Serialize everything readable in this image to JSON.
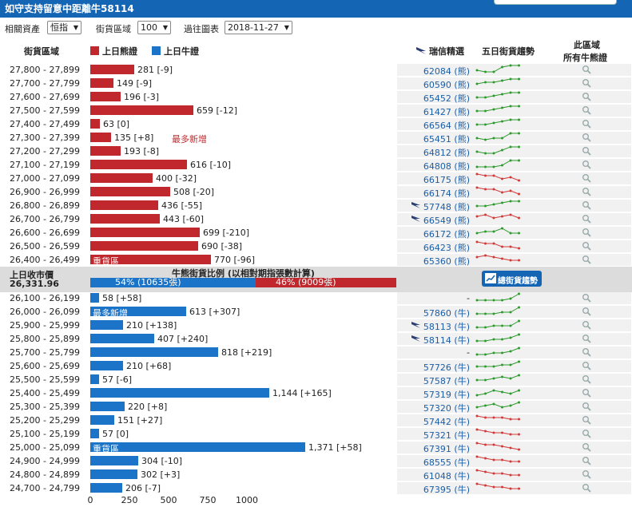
{
  "header": {
    "title": "如守支持留意中距離牛58114"
  },
  "controls": {
    "asset_label": "相關資產",
    "asset_value": "恒指",
    "zone_label": "街貨區域",
    "zone_value": "100",
    "date_label": "過往圖表",
    "date_value": "2018-11-27"
  },
  "columns": {
    "zone": "街貨區域",
    "bear_legend": "上日熊證",
    "bull_legend": "上日牛證",
    "pick": "瑞信精選",
    "trend": "五日街貨趨勢",
    "all_line1": "此區域",
    "all_line2": "所有牛熊證"
  },
  "mid": {
    "close_label": "上日收市價",
    "close_value": "26,331.96",
    "ratio_title": "牛熊街貨比例 (以相對期指張數計算)",
    "bull_label": "54% (10635張)",
    "bear_label": "46% (9009張)",
    "trend_button": "總街貨趨勢"
  },
  "colors": {
    "bear": "#c0282d",
    "bull": "#1b74c7",
    "header": "#1565b5"
  },
  "chart_data": {
    "type": "bar",
    "orientation": "horizontal",
    "xlim": [
      0,
      1400
    ],
    "xticks": [
      "0",
      "250",
      "500",
      "750",
      "1000"
    ],
    "bear_rows": [
      {
        "range": "27,800 - 27,899",
        "value": 281,
        "change": "[-9]",
        "code": "62084 (熊)",
        "flag": false,
        "trend": [
          3,
          2,
          2,
          5,
          6,
          6
        ]
      },
      {
        "range": "27,700 - 27,799",
        "value": 149,
        "change": "[-9]",
        "code": "60590 (熊)",
        "flag": false,
        "trend": [
          3,
          4,
          4,
          5,
          6,
          6
        ]
      },
      {
        "range": "27,600 - 27,699",
        "value": 196,
        "change": "[-3]",
        "code": "65452 (熊)",
        "flag": false,
        "trend": [
          3,
          3,
          4,
          5,
          6,
          6
        ]
      },
      {
        "range": "27,500 - 27,599",
        "value": 659,
        "change": "[-12]",
        "code": "61427 (熊)",
        "flag": false,
        "trend": [
          3,
          3,
          4,
          5,
          6,
          6
        ]
      },
      {
        "range": "27,400 - 27,499",
        "value": 63,
        "change": "[0]",
        "code": "66564 (熊)",
        "flag": false,
        "trend": [
          3,
          3,
          4,
          5,
          6,
          6
        ]
      },
      {
        "range": "27,300 - 27,399",
        "value": 135,
        "change": "[+8]",
        "note": "最多新增",
        "code": "65451 (熊)",
        "flag": false,
        "trend": [
          3,
          2,
          3,
          3,
          6,
          6
        ]
      },
      {
        "range": "27,200 - 27,299",
        "value": 193,
        "change": "[-8]",
        "code": "64812 (熊)",
        "flag": false,
        "trend": [
          3,
          2,
          2,
          4,
          6,
          6
        ]
      },
      {
        "range": "27,100 - 27,199",
        "value": 616,
        "change": "[-10]",
        "code": "64808 (熊)",
        "flag": false,
        "trend": [
          2,
          2,
          2,
          3,
          6,
          6
        ]
      },
      {
        "range": "27,000 - 27,099",
        "value": 400,
        "change": "[-32]",
        "code": "66175 (熊)",
        "flag": false,
        "trend": [
          6,
          5,
          5,
          3,
          4,
          2
        ]
      },
      {
        "range": "26,900 - 26,999",
        "value": 508,
        "change": "[-20]",
        "code": "66174 (熊)",
        "flag": false,
        "trend": [
          6,
          5,
          5,
          3,
          4,
          2
        ]
      },
      {
        "range": "26,800 - 26,899",
        "value": 436,
        "change": "[-55]",
        "code": "57748 (熊)",
        "flag": true,
        "trend": [
          3,
          3,
          4,
          5,
          6,
          6
        ]
      },
      {
        "range": "26,700 - 26,799",
        "value": 443,
        "change": "[-60]",
        "code": "66549 (熊)",
        "flag": true,
        "trend": [
          5,
          6,
          4,
          5,
          6,
          4
        ]
      },
      {
        "range": "26,600 - 26,699",
        "value": 699,
        "change": "[-210]",
        "code": "66172 (熊)",
        "flag": false,
        "trend": [
          3,
          4,
          4,
          6,
          3,
          3
        ]
      },
      {
        "range": "26,500 - 26,599",
        "value": 690,
        "change": "[-38]",
        "code": "66423 (熊)",
        "flag": false,
        "trend": [
          6,
          5,
          5,
          3,
          3,
          2
        ]
      },
      {
        "range": "26,400 - 26,499",
        "value": 770,
        "change": "[-96]",
        "inbar": "重貨區",
        "code": "65360 (熊)",
        "flag": false,
        "trend": [
          5,
          6,
          5,
          4,
          3,
          3
        ]
      }
    ],
    "bull_rows": [
      {
        "range": "26,100 - 26,199",
        "value": 58,
        "change": "[+58]",
        "code": "-",
        "flag": false,
        "trend": [
          2,
          2,
          2,
          2,
          3,
          6
        ]
      },
      {
        "range": "26,000 - 26,099",
        "value": 613,
        "change": "[+307]",
        "inbar": "最多新增",
        "code": "57860 (牛)",
        "flag": false,
        "trend": [
          2,
          2,
          2,
          3,
          3,
          6
        ]
      },
      {
        "range": "25,900 - 25,999",
        "value": 210,
        "change": "[+138]",
        "code": "58113 (牛)",
        "flag": true,
        "trend": [
          2,
          2,
          3,
          3,
          3,
          6
        ]
      },
      {
        "range": "25,800 - 25,899",
        "value": 407,
        "change": "[+240]",
        "code": "58114 (牛)",
        "flag": true,
        "trend": [
          2,
          2,
          3,
          3,
          4,
          6
        ]
      },
      {
        "range": "25,700 - 25,799",
        "value": 818,
        "change": "[+219]",
        "code": "-",
        "flag": false,
        "trend": [
          2,
          2,
          3,
          3,
          4,
          6
        ]
      },
      {
        "range": "25,600 - 25,699",
        "value": 210,
        "change": "[+68]",
        "code": "57726 (牛)",
        "flag": false,
        "trend": [
          3,
          3,
          3,
          4,
          4,
          6
        ]
      },
      {
        "range": "25,500 - 25,599",
        "value": 57,
        "change": "[-6]",
        "code": "57587 (牛)",
        "flag": false,
        "trend": [
          3,
          3,
          4,
          5,
          4,
          6
        ]
      },
      {
        "range": "25,400 - 25,499",
        "value": 1144,
        "change": "[+165]",
        "code": "57319 (牛)",
        "flag": false,
        "trend": [
          2,
          3,
          5,
          4,
          3,
          5
        ]
      },
      {
        "range": "25,300 - 25,399",
        "value": 220,
        "change": "[+8]",
        "code": "57320 (牛)",
        "flag": false,
        "trend": [
          3,
          4,
          5,
          3,
          4,
          6
        ]
      },
      {
        "range": "25,200 - 25,299",
        "value": 151,
        "change": "[+27]",
        "code": "57442 (牛)",
        "flag": false,
        "trend": [
          6,
          5,
          5,
          5,
          4,
          4
        ]
      },
      {
        "range": "25,100 - 25,199",
        "value": 57,
        "change": "[0]",
        "code": "57321 (牛)",
        "flag": false,
        "trend": [
          6,
          5,
          4,
          4,
          3,
          3
        ]
      },
      {
        "range": "25,000 - 25,099",
        "value": 1371,
        "change": "[+58]",
        "inbar": "重貨區",
        "code": "67391 (牛)",
        "flag": false,
        "trend": [
          6,
          5,
          5,
          4,
          3,
          2
        ]
      },
      {
        "range": "24,900 - 24,999",
        "value": 304,
        "change": "[-10]",
        "code": "68555 (牛)",
        "flag": false,
        "trend": [
          6,
          5,
          4,
          4,
          3,
          3
        ]
      },
      {
        "range": "24,800 - 24,899",
        "value": 302,
        "change": "[+3]",
        "code": "61048 (牛)",
        "flag": false,
        "trend": [
          6,
          5,
          4,
          4,
          3,
          3
        ]
      },
      {
        "range": "24,700 - 24,799",
        "value": 206,
        "change": "[-7]",
        "code": "67395 (牛)",
        "flag": false,
        "trend": [
          6,
          5,
          4,
          4,
          3,
          3
        ]
      }
    ]
  }
}
